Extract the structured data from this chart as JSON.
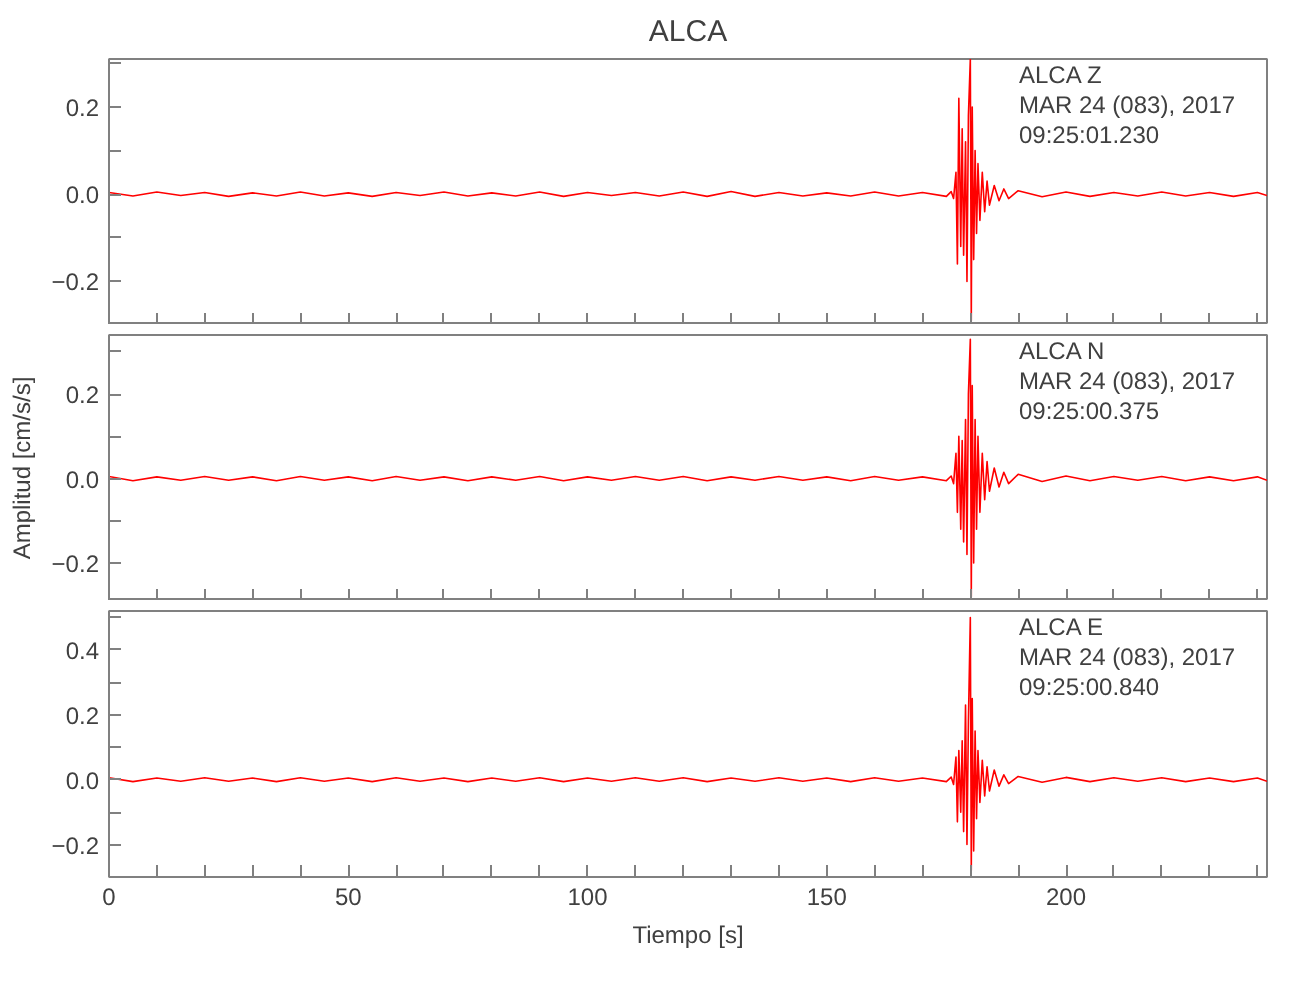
{
  "chart_data": [
    {
      "type": "line",
      "title": "ALCA",
      "annotations": [
        "ALCA   Z",
        "MAR 24 (083), 2017",
        "09:25:01.230"
      ],
      "tick_labels": "y",
      "grid": false,
      "x": [
        0,
        5,
        10,
        15,
        20,
        25,
        30,
        35,
        40,
        45,
        50,
        55,
        60,
        65,
        70,
        75,
        80,
        85,
        90,
        95,
        100,
        105,
        110,
        115,
        120,
        125,
        130,
        135,
        140,
        145,
        150,
        155,
        160,
        165,
        170,
        175,
        176,
        176.5,
        177,
        177.3,
        177.6,
        178,
        178.3,
        178.6,
        179,
        179.3,
        179.6,
        180,
        180.2,
        180.4,
        180.7,
        181,
        181.3,
        181.6,
        182,
        182.5,
        183,
        183.5,
        184,
        185,
        186,
        187,
        188,
        190,
        195,
        200,
        205,
        210,
        215,
        220,
        225,
        230,
        235,
        240,
        242
      ],
      "series": [
        {
          "color": "#ff0000",
          "values": [
            0.004,
            -0.004,
            0.005,
            -0.003,
            0.004,
            -0.005,
            0.003,
            -0.004,
            0.005,
            -0.004,
            0.003,
            -0.005,
            0.004,
            -0.003,
            0.005,
            -0.004,
            0.003,
            -0.004,
            0.005,
            -0.005,
            0.004,
            -0.003,
            0.004,
            -0.004,
            0.005,
            -0.005,
            0.006,
            -0.005,
            0.004,
            -0.004,
            0.003,
            -0.004,
            0.005,
            -0.004,
            0.004,
            -0.005,
            0.006,
            -0.01,
            0.05,
            -0.16,
            0.22,
            -0.12,
            0.15,
            -0.14,
            0.12,
            -0.2,
            0.18,
            0.31,
            -0.29,
            0.2,
            -0.15,
            0.1,
            -0.09,
            0.07,
            -0.06,
            0.05,
            -0.04,
            0.03,
            -0.025,
            0.02,
            -0.015,
            0.012,
            -0.01,
            0.008,
            -0.006,
            0.005,
            -0.005,
            0.004,
            -0.004,
            0.005,
            -0.004,
            0.004,
            -0.005,
            0.004,
            -0.003
          ]
        }
      ],
      "xlim": [
        0,
        242
      ],
      "ylim": [
        -0.3,
        0.31
      ],
      "xticks": [
        {
          "value": 0,
          "label": null
        },
        {
          "value": 10,
          "label": null
        },
        {
          "value": 20,
          "label": null
        },
        {
          "value": 30,
          "label": null
        },
        {
          "value": 40,
          "label": null
        },
        {
          "value": 50,
          "label": null
        },
        {
          "value": 60,
          "label": null
        },
        {
          "value": 70,
          "label": null
        },
        {
          "value": 80,
          "label": null
        },
        {
          "value": 90,
          "label": null
        },
        {
          "value": 100,
          "label": null
        },
        {
          "value": 110,
          "label": null
        },
        {
          "value": 120,
          "label": null
        },
        {
          "value": 130,
          "label": null
        },
        {
          "value": 140,
          "label": null
        },
        {
          "value": 150,
          "label": null
        },
        {
          "value": 160,
          "label": null
        },
        {
          "value": 170,
          "label": null
        },
        {
          "value": 180,
          "label": null
        },
        {
          "value": 190,
          "label": null
        },
        {
          "value": 200,
          "label": null
        },
        {
          "value": 210,
          "label": null
        },
        {
          "value": 220,
          "label": null
        },
        {
          "value": 230,
          "label": null
        },
        {
          "value": 240,
          "label": null
        }
      ],
      "yticks": [
        {
          "value": -0.3,
          "label": null
        },
        {
          "value": -0.2,
          "label": "−0.2"
        },
        {
          "value": -0.1,
          "label": null
        },
        {
          "value": 0,
          "label": "0.0"
        },
        {
          "value": 0.1,
          "label": null
        },
        {
          "value": 0.2,
          "label": "0.2"
        },
        {
          "value": 0.3,
          "label": null
        }
      ]
    },
    {
      "type": "line",
      "ylabel": "Amplitud [cm/s/s]",
      "annotations": [
        "ALCA   N",
        "MAR 24 (083), 2017",
        "09:25:00.375"
      ],
      "tick_labels": "y",
      "grid": false,
      "x": [
        0,
        5,
        10,
        15,
        20,
        25,
        30,
        35,
        40,
        45,
        50,
        55,
        60,
        65,
        70,
        75,
        80,
        85,
        90,
        95,
        100,
        105,
        110,
        115,
        120,
        125,
        130,
        135,
        140,
        145,
        150,
        155,
        160,
        165,
        170,
        175,
        176,
        176.5,
        177,
        177.3,
        177.6,
        178,
        178.3,
        178.6,
        179,
        179.3,
        179.6,
        180,
        180.2,
        180.4,
        180.7,
        181,
        181.3,
        181.6,
        182,
        182.5,
        183,
        183.5,
        184,
        185,
        186,
        187,
        188,
        190,
        195,
        200,
        205,
        210,
        215,
        220,
        225,
        230,
        235,
        240,
        242
      ],
      "series": [
        {
          "color": "#ff0000",
          "values": [
            0.005,
            -0.005,
            0.004,
            -0.004,
            0.005,
            -0.004,
            0.004,
            -0.005,
            0.005,
            -0.004,
            0.004,
            -0.005,
            0.005,
            -0.004,
            0.004,
            -0.005,
            0.004,
            -0.004,
            0.005,
            -0.005,
            0.004,
            -0.004,
            0.005,
            -0.004,
            0.005,
            -0.005,
            0.004,
            -0.004,
            0.005,
            -0.004,
            0.004,
            -0.005,
            0.005,
            -0.004,
            0.004,
            -0.005,
            0.006,
            -0.012,
            0.06,
            -0.08,
            0.1,
            -0.12,
            0.09,
            -0.15,
            0.14,
            -0.18,
            0.2,
            0.33,
            -0.28,
            0.22,
            -0.2,
            0.14,
            -0.12,
            0.1,
            -0.08,
            0.06,
            -0.05,
            0.04,
            -0.03,
            0.025,
            -0.02,
            0.015,
            -0.012,
            0.01,
            -0.007,
            0.006,
            -0.005,
            0.005,
            -0.004,
            0.005,
            -0.005,
            0.004,
            -0.005,
            0.004,
            -0.004
          ]
        }
      ],
      "xlim": [
        0,
        242
      ],
      "ylim": [
        -0.29,
        0.34
      ],
      "xticks": [
        {
          "value": 0,
          "label": null
        },
        {
          "value": 10,
          "label": null
        },
        {
          "value": 20,
          "label": null
        },
        {
          "value": 30,
          "label": null
        },
        {
          "value": 40,
          "label": null
        },
        {
          "value": 50,
          "label": null
        },
        {
          "value": 60,
          "label": null
        },
        {
          "value": 70,
          "label": null
        },
        {
          "value": 80,
          "label": null
        },
        {
          "value": 90,
          "label": null
        },
        {
          "value": 100,
          "label": null
        },
        {
          "value": 110,
          "label": null
        },
        {
          "value": 120,
          "label": null
        },
        {
          "value": 130,
          "label": null
        },
        {
          "value": 140,
          "label": null
        },
        {
          "value": 150,
          "label": null
        },
        {
          "value": 160,
          "label": null
        },
        {
          "value": 170,
          "label": null
        },
        {
          "value": 180,
          "label": null
        },
        {
          "value": 190,
          "label": null
        },
        {
          "value": 200,
          "label": null
        },
        {
          "value": 210,
          "label": null
        },
        {
          "value": 220,
          "label": null
        },
        {
          "value": 230,
          "label": null
        },
        {
          "value": 240,
          "label": null
        }
      ],
      "yticks": [
        {
          "value": -0.2,
          "label": "−0.2"
        },
        {
          "value": -0.1,
          "label": null
        },
        {
          "value": 0,
          "label": "0.0"
        },
        {
          "value": 0.1,
          "label": null
        },
        {
          "value": 0.2,
          "label": "0.2"
        },
        {
          "value": 0.3,
          "label": null
        }
      ]
    },
    {
      "type": "line",
      "xlabel": "Tiempo [s]",
      "annotations": [
        "ALCA   E",
        "MAR 24 (083), 2017",
        "09:25:00.840"
      ],
      "grid": false,
      "x": [
        0,
        5,
        10,
        15,
        20,
        25,
        30,
        35,
        40,
        45,
        50,
        55,
        60,
        65,
        70,
        75,
        80,
        85,
        90,
        95,
        100,
        105,
        110,
        115,
        120,
        125,
        130,
        135,
        140,
        145,
        150,
        155,
        160,
        165,
        170,
        175,
        176,
        176.5,
        177,
        177.3,
        177.6,
        178,
        178.3,
        178.6,
        179,
        179.3,
        179.6,
        180,
        180.2,
        180.4,
        180.7,
        181,
        181.3,
        181.6,
        182,
        182.5,
        183,
        183.5,
        184,
        185,
        186,
        187,
        188,
        190,
        195,
        200,
        205,
        210,
        215,
        220,
        225,
        230,
        235,
        240,
        242
      ],
      "series": [
        {
          "color": "#ff0000",
          "values": [
            0.006,
            -0.006,
            0.005,
            -0.005,
            0.006,
            -0.005,
            0.005,
            -0.006,
            0.006,
            -0.005,
            0.005,
            -0.006,
            0.006,
            -0.005,
            0.005,
            -0.006,
            0.005,
            -0.005,
            0.006,
            -0.006,
            0.005,
            -0.005,
            0.006,
            -0.005,
            0.006,
            -0.006,
            0.005,
            -0.005,
            0.006,
            -0.005,
            0.005,
            -0.006,
            0.006,
            -0.005,
            0.005,
            -0.006,
            0.008,
            -0.015,
            0.07,
            -0.13,
            0.09,
            -0.1,
            0.12,
            -0.16,
            0.23,
            -0.2,
            0.18,
            0.5,
            -0.28,
            0.25,
            -0.22,
            0.15,
            -0.12,
            0.09,
            -0.07,
            0.06,
            -0.05,
            0.04,
            -0.035,
            0.03,
            -0.02,
            0.015,
            -0.012,
            0.01,
            -0.008,
            0.007,
            -0.006,
            0.006,
            -0.005,
            0.006,
            -0.006,
            0.005,
            -0.006,
            0.005,
            -0.005
          ]
        }
      ],
      "xlim": [
        0,
        242
      ],
      "ylim": [
        -0.3,
        0.52
      ],
      "xticks": [
        0,
        {
          "value": 10,
          "label": null
        },
        {
          "value": 20,
          "label": null
        },
        {
          "value": 30,
          "label": null
        },
        {
          "value": 40,
          "label": null
        },
        50,
        {
          "value": 60,
          "label": null
        },
        {
          "value": 70,
          "label": null
        },
        {
          "value": 80,
          "label": null
        },
        {
          "value": 90,
          "label": null
        },
        100,
        {
          "value": 110,
          "label": null
        },
        {
          "value": 120,
          "label": null
        },
        {
          "value": 130,
          "label": null
        },
        {
          "value": 140,
          "label": null
        },
        150,
        {
          "value": 160,
          "label": null
        },
        {
          "value": 170,
          "label": null
        },
        {
          "value": 180,
          "label": null
        },
        {
          "value": 190,
          "label": null
        },
        200,
        {
          "value": 210,
          "label": null
        },
        {
          "value": 220,
          "label": null
        },
        {
          "value": 230,
          "label": null
        },
        {
          "value": 240,
          "label": null
        }
      ],
      "yticks": [
        {
          "value": -0.3,
          "label": null
        },
        {
          "value": -0.2,
          "label": "−0.2"
        },
        {
          "value": -0.1,
          "label": null
        },
        {
          "value": 0,
          "label": "0.0"
        },
        {
          "value": 0.1,
          "label": null
        },
        {
          "value": 0.2,
          "label": "0.2"
        },
        {
          "value": 0.3,
          "label": null
        },
        {
          "value": 0.4,
          "label": "0.4"
        },
        {
          "value": 0.5,
          "label": null
        }
      ]
    }
  ]
}
